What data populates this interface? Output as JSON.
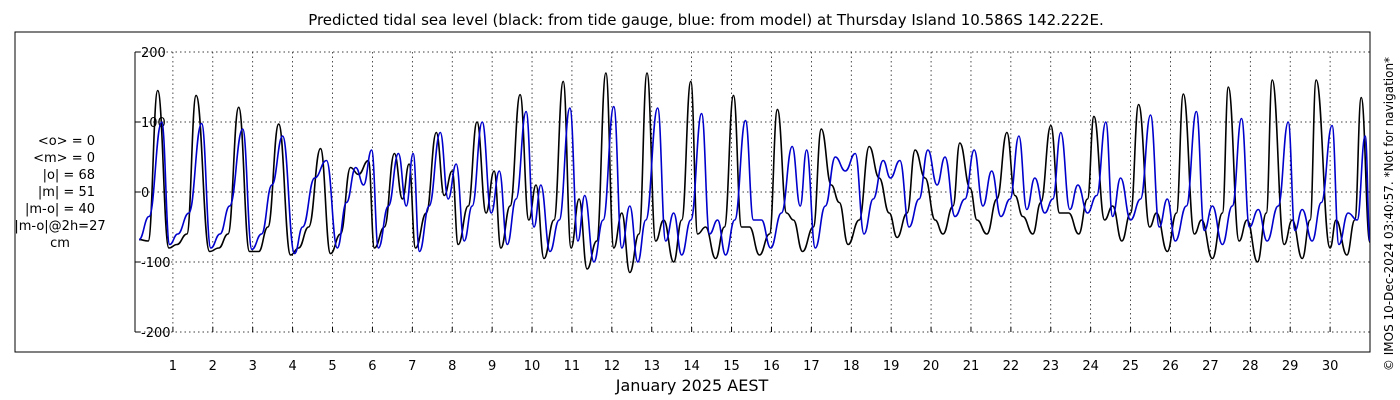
{
  "chart_data": {
    "type": "line",
    "title": "Predicted tidal sea level (black: from tide gauge, blue: from model) at Thursday Island 10.586S 142.222E.",
    "xlabel": "January 2025 AEST",
    "ylabel": "",
    "xlim": [
      0.05,
      31.0
    ],
    "ylim": [
      -200,
      200
    ],
    "x_ticks": [
      "1",
      "2",
      "3",
      "4",
      "5",
      "6",
      "7",
      "8",
      "9",
      "10",
      "11",
      "12",
      "13",
      "14",
      "15",
      "16",
      "17",
      "18",
      "19",
      "20",
      "21",
      "22",
      "23",
      "24",
      "25",
      "26",
      "27",
      "28",
      "29",
      "30"
    ],
    "y_ticks": [
      -200,
      -100,
      0,
      100,
      200
    ],
    "grid": true,
    "stats": [
      "<o> = 0",
      "<m> = 0",
      "|o| = 68",
      "|m| = 51",
      "|m-o| = 40",
      "|m-o|@2h=27",
      "cm"
    ],
    "credit": "© IMOS 10-Dec-2024 03:40:57. *Not for navigation*",
    "colors": {
      "gauge": "#000000",
      "model": "#0000cc"
    },
    "series": [
      {
        "name": "from tide gauge",
        "color": "#000000",
        "peaks": [
          [
            0.15,
            -68
          ],
          [
            0.38,
            -70
          ],
          [
            0.62,
            145
          ],
          [
            0.9,
            -80
          ],
          [
            1.1,
            -75
          ],
          [
            1.35,
            -60
          ],
          [
            1.58,
            138
          ],
          [
            1.92,
            -85
          ],
          [
            2.15,
            -80
          ],
          [
            2.38,
            -60
          ],
          [
            2.65,
            121
          ],
          [
            2.92,
            -85
          ],
          [
            3.15,
            -85
          ],
          [
            3.38,
            -50
          ],
          [
            3.65,
            97
          ],
          [
            3.95,
            -90
          ],
          [
            4.15,
            -80
          ],
          [
            4.4,
            -50
          ],
          [
            4.7,
            62
          ],
          [
            4.95,
            -88
          ],
          [
            5.2,
            -60
          ],
          [
            5.45,
            35
          ],
          [
            5.65,
            25
          ],
          [
            5.9,
            45
          ],
          [
            6.05,
            -80
          ],
          [
            6.3,
            -50
          ],
          [
            6.55,
            55
          ],
          [
            6.75,
            -10
          ],
          [
            6.92,
            40
          ],
          [
            7.08,
            -80
          ],
          [
            7.35,
            -30
          ],
          [
            7.6,
            85
          ],
          [
            7.8,
            -5
          ],
          [
            8.0,
            30
          ],
          [
            8.15,
            -75
          ],
          [
            8.4,
            -20
          ],
          [
            8.62,
            100
          ],
          [
            8.85,
            -30
          ],
          [
            9.05,
            30
          ],
          [
            9.22,
            -80
          ],
          [
            9.45,
            -20
          ],
          [
            9.7,
            139
          ],
          [
            9.92,
            -40
          ],
          [
            10.1,
            10
          ],
          [
            10.3,
            -95
          ],
          [
            10.55,
            -40
          ],
          [
            10.78,
            158
          ],
          [
            10.98,
            -80
          ],
          [
            11.18,
            -10
          ],
          [
            11.38,
            -110
          ],
          [
            11.62,
            -70
          ],
          [
            11.85,
            170
          ],
          [
            12.05,
            -80
          ],
          [
            12.25,
            -30
          ],
          [
            12.45,
            -115
          ],
          [
            12.68,
            -60
          ],
          [
            12.88,
            170
          ],
          [
            13.1,
            -70
          ],
          [
            13.3,
            -40
          ],
          [
            13.55,
            -100
          ],
          [
            13.75,
            -40
          ],
          [
            13.98,
            158
          ],
          [
            14.15,
            -60
          ],
          [
            14.35,
            -50
          ],
          [
            14.6,
            -95
          ],
          [
            14.82,
            -50
          ],
          [
            15.05,
            138
          ],
          [
            15.25,
            -50
          ],
          [
            15.45,
            -50
          ],
          [
            15.7,
            -90
          ],
          [
            15.95,
            -60
          ],
          [
            16.15,
            118
          ],
          [
            16.38,
            -30
          ],
          [
            16.55,
            -40
          ],
          [
            16.78,
            -85
          ],
          [
            17.05,
            -50
          ],
          [
            17.25,
            90
          ],
          [
            17.5,
            10
          ],
          [
            17.7,
            -15
          ],
          [
            17.92,
            -75
          ],
          [
            18.2,
            -40
          ],
          [
            18.45,
            65
          ],
          [
            18.7,
            20
          ],
          [
            18.95,
            -30
          ],
          [
            19.15,
            -65
          ],
          [
            19.4,
            -30
          ],
          [
            19.6,
            60
          ],
          [
            19.85,
            20
          ],
          [
            20.1,
            -40
          ],
          [
            20.3,
            -60
          ],
          [
            20.55,
            -20
          ],
          [
            20.72,
            70
          ],
          [
            20.98,
            5
          ],
          [
            21.15,
            -40
          ],
          [
            21.4,
            -60
          ],
          [
            21.65,
            -10
          ],
          [
            21.9,
            85
          ],
          [
            22.1,
            -5
          ],
          [
            22.3,
            -35
          ],
          [
            22.55,
            -60
          ],
          [
            22.75,
            -15
          ],
          [
            23.0,
            95
          ],
          [
            23.22,
            -30
          ],
          [
            23.45,
            -30
          ],
          [
            23.7,
            -60
          ],
          [
            23.92,
            -10
          ],
          [
            24.08,
            108
          ],
          [
            24.35,
            -40
          ],
          [
            24.55,
            -20
          ],
          [
            24.78,
            -70
          ],
          [
            25.0,
            -30
          ],
          [
            25.2,
            125
          ],
          [
            25.48,
            -50
          ],
          [
            25.65,
            -30
          ],
          [
            25.92,
            -85
          ],
          [
            26.15,
            -30
          ],
          [
            26.32,
            140
          ],
          [
            26.6,
            -60
          ],
          [
            26.78,
            -40
          ],
          [
            27.05,
            -95
          ],
          [
            27.3,
            -30
          ],
          [
            27.45,
            150
          ],
          [
            27.72,
            -70
          ],
          [
            27.92,
            -40
          ],
          [
            28.18,
            -100
          ],
          [
            28.4,
            -30
          ],
          [
            28.55,
            160
          ],
          [
            28.85,
            -75
          ],
          [
            29.05,
            -40
          ],
          [
            29.3,
            -95
          ],
          [
            29.5,
            -40
          ],
          [
            29.65,
            160
          ],
          [
            30.0,
            -80
          ],
          [
            30.15,
            -40
          ],
          [
            30.42,
            -90
          ],
          [
            30.62,
            -40
          ],
          [
            30.78,
            135
          ],
          [
            31.0,
            -72
          ]
        ]
      },
      {
        "name": "from model",
        "color": "#0000cc",
        "peaks": [
          [
            0.15,
            -68
          ],
          [
            0.4,
            -35
          ],
          [
            0.72,
            100
          ],
          [
            0.92,
            -75
          ],
          [
            1.12,
            -60
          ],
          [
            1.4,
            -30
          ],
          [
            1.72,
            98
          ],
          [
            1.95,
            -80
          ],
          [
            2.18,
            -60
          ],
          [
            2.42,
            -20
          ],
          [
            2.75,
            90
          ],
          [
            2.98,
            -82
          ],
          [
            3.22,
            -60
          ],
          [
            3.48,
            10
          ],
          [
            3.75,
            80
          ],
          [
            4.05,
            -88
          ],
          [
            4.25,
            -50
          ],
          [
            4.55,
            20
          ],
          [
            4.85,
            45
          ],
          [
            5.12,
            -80
          ],
          [
            5.35,
            -15
          ],
          [
            5.58,
            35
          ],
          [
            5.78,
            10
          ],
          [
            5.98,
            60
          ],
          [
            6.15,
            -80
          ],
          [
            6.4,
            -20
          ],
          [
            6.65,
            55
          ],
          [
            6.85,
            -20
          ],
          [
            7.02,
            55
          ],
          [
            7.18,
            -85
          ],
          [
            7.42,
            -20
          ],
          [
            7.7,
            85
          ],
          [
            7.9,
            -10
          ],
          [
            8.1,
            40
          ],
          [
            8.3,
            -70
          ],
          [
            8.5,
            -20
          ],
          [
            8.75,
            100
          ],
          [
            8.98,
            -30
          ],
          [
            9.18,
            30
          ],
          [
            9.38,
            -75
          ],
          [
            9.6,
            -10
          ],
          [
            9.85,
            115
          ],
          [
            10.05,
            -50
          ],
          [
            10.22,
            10
          ],
          [
            10.45,
            -85
          ],
          [
            10.68,
            -40
          ],
          [
            10.95,
            120
          ],
          [
            11.15,
            -70
          ],
          [
            11.32,
            -5
          ],
          [
            11.55,
            -100
          ],
          [
            11.78,
            -40
          ],
          [
            12.05,
            122
          ],
          [
            12.25,
            -80
          ],
          [
            12.45,
            -20
          ],
          [
            12.65,
            -100
          ],
          [
            12.85,
            -40
          ],
          [
            13.15,
            120
          ],
          [
            13.35,
            -70
          ],
          [
            13.55,
            -30
          ],
          [
            13.75,
            -90
          ],
          [
            13.98,
            -40
          ],
          [
            14.25,
            112
          ],
          [
            14.45,
            -60
          ],
          [
            14.65,
            -40
          ],
          [
            14.85,
            -90
          ],
          [
            15.08,
            -40
          ],
          [
            15.35,
            102
          ],
          [
            15.55,
            -40
          ],
          [
            15.75,
            -40
          ],
          [
            15.98,
            -80
          ],
          [
            16.25,
            -30
          ],
          [
            16.52,
            65
          ],
          [
            16.72,
            -20
          ],
          [
            16.88,
            60
          ],
          [
            17.1,
            -80
          ],
          [
            17.35,
            -20
          ],
          [
            17.6,
            50
          ],
          [
            17.85,
            30
          ],
          [
            18.1,
            55
          ],
          [
            18.32,
            -60
          ],
          [
            18.55,
            -10
          ],
          [
            18.8,
            45
          ],
          [
            18.98,
            20
          ],
          [
            19.22,
            45
          ],
          [
            19.45,
            -50
          ],
          [
            19.7,
            -10
          ],
          [
            19.92,
            60
          ],
          [
            20.15,
            10
          ],
          [
            20.35,
            50
          ],
          [
            20.6,
            -35
          ],
          [
            20.85,
            -10
          ],
          [
            21.08,
            60
          ],
          [
            21.3,
            -20
          ],
          [
            21.52,
            30
          ],
          [
            21.75,
            -35
          ],
          [
            21.98,
            -10
          ],
          [
            22.2,
            80
          ],
          [
            22.4,
            -25
          ],
          [
            22.6,
            20
          ],
          [
            22.85,
            -30
          ],
          [
            23.05,
            -10
          ],
          [
            23.25,
            85
          ],
          [
            23.48,
            -25
          ],
          [
            23.68,
            10
          ],
          [
            23.92,
            -30
          ],
          [
            24.15,
            -5
          ],
          [
            24.38,
            100
          ],
          [
            24.55,
            -35
          ],
          [
            24.75,
            20
          ],
          [
            25.0,
            -40
          ],
          [
            25.25,
            -10
          ],
          [
            25.5,
            110
          ],
          [
            25.72,
            -50
          ],
          [
            25.92,
            -10
          ],
          [
            26.12,
            -70
          ],
          [
            26.4,
            -20
          ],
          [
            26.65,
            115
          ],
          [
            26.85,
            -55
          ],
          [
            27.05,
            -20
          ],
          [
            27.3,
            -75
          ],
          [
            27.55,
            -20
          ],
          [
            27.78,
            105
          ],
          [
            27.98,
            -50
          ],
          [
            28.2,
            -25
          ],
          [
            28.42,
            -70
          ],
          [
            28.7,
            -20
          ],
          [
            28.95,
            100
          ],
          [
            29.12,
            -55
          ],
          [
            29.3,
            -25
          ],
          [
            29.55,
            -70
          ],
          [
            29.78,
            -15
          ],
          [
            30.05,
            95
          ],
          [
            30.22,
            -75
          ],
          [
            30.45,
            -30
          ],
          [
            30.68,
            -40
          ],
          [
            30.88,
            80
          ],
          [
            31.0,
            -70
          ]
        ]
      }
    ]
  }
}
